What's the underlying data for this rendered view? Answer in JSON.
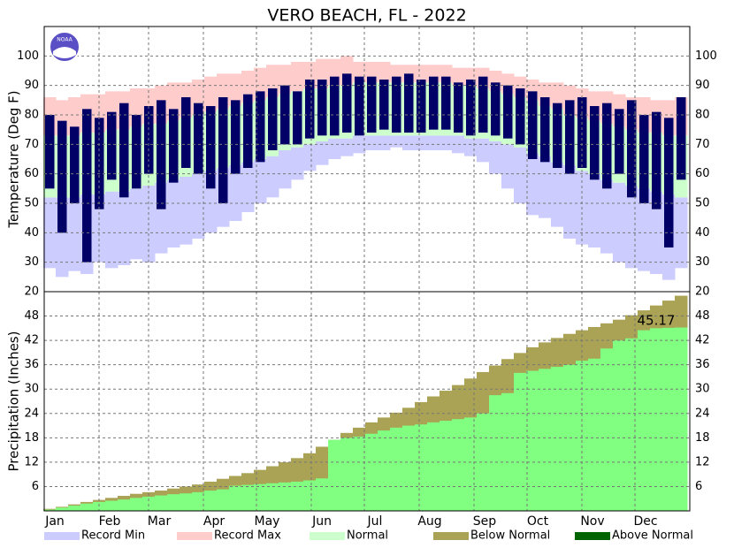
{
  "chart_data": [
    {
      "type": "bar",
      "title": "VERO BEACH, FL - 2022",
      "logo_text": "NOAA",
      "ylabel": "Temperature (Deg F)",
      "x": [
        3,
        10,
        17,
        24,
        31,
        38,
        45,
        52,
        59,
        66,
        73,
        80,
        87,
        94,
        101,
        108,
        115,
        122,
        129,
        136,
        143,
        150,
        157,
        164,
        171,
        178,
        185,
        192,
        199,
        206,
        213,
        220,
        227,
        234,
        241,
        248,
        255,
        262,
        269,
        276,
        283,
        290,
        297,
        304,
        311,
        318,
        325,
        332,
        339,
        346,
        353,
        360
      ],
      "xlim": [
        0,
        365
      ],
      "ylim": [
        20,
        110
      ],
      "yticks": [
        20,
        30,
        40,
        50,
        60,
        70,
        80,
        90,
        100
      ],
      "grid": true,
      "series": [
        {
          "color": "#ccccff",
          "values": [
            28,
            25,
            27,
            26,
            30,
            28,
            29,
            31,
            30,
            33,
            35,
            36,
            38,
            40,
            42,
            44,
            47,
            50,
            52,
            55,
            58,
            61,
            63,
            65,
            66,
            67,
            68,
            68,
            69,
            68,
            68,
            68,
            68,
            67,
            66,
            64,
            60,
            55,
            50,
            46,
            45,
            42,
            38,
            36,
            35,
            33,
            30,
            28,
            27,
            26,
            24,
            28
          ]
        },
        {
          "color": "#ffcccc",
          "values": [
            86,
            85,
            86,
            87,
            87,
            88,
            88,
            89,
            89,
            90,
            91,
            91,
            92,
            93,
            94,
            94,
            95,
            96,
            97,
            97,
            98,
            98,
            99,
            99,
            100,
            98,
            98,
            98,
            97,
            97,
            97,
            97,
            97,
            96,
            96,
            96,
            95,
            94,
            93,
            92,
            91,
            91,
            90,
            89,
            88,
            88,
            87,
            86,
            86,
            85,
            85,
            86
          ]
        },
        {
          "color": "#ccffcc",
          "low": [
            52,
            52,
            52,
            53,
            53,
            54,
            54,
            55,
            56,
            57,
            58,
            59,
            60,
            61,
            62,
            63,
            64,
            65,
            66,
            68,
            69,
            70,
            71,
            72,
            72,
            73,
            73,
            73,
            73,
            73,
            73,
            73,
            73,
            73,
            72,
            72,
            71,
            70,
            69,
            67,
            66,
            64,
            63,
            61,
            60,
            58,
            57,
            56,
            55,
            54,
            53,
            52
          ],
          "values": [
            73,
            73,
            73,
            74,
            74,
            75,
            75,
            76,
            77,
            77,
            78,
            79,
            80,
            81,
            82,
            83,
            84,
            85,
            86,
            87,
            88,
            89,
            89,
            90,
            90,
            91,
            91,
            91,
            91,
            91,
            91,
            91,
            91,
            90,
            90,
            89,
            88,
            87,
            86,
            85,
            83,
            82,
            80,
            79,
            78,
            77,
            76,
            75,
            74,
            74,
            73,
            73
          ]
        },
        {
          "color": "#000066",
          "low": [
            55,
            40,
            50,
            30,
            48,
            58,
            52,
            55,
            60,
            48,
            57,
            62,
            60,
            55,
            50,
            60,
            62,
            64,
            68,
            70,
            70,
            72,
            73,
            73,
            74,
            73,
            74,
            75,
            74,
            74,
            74,
            75,
            75,
            74,
            73,
            74,
            73,
            72,
            70,
            65,
            64,
            62,
            60,
            62,
            58,
            55,
            60,
            52,
            50,
            48,
            35,
            58
          ],
          "values": [
            80,
            78,
            76,
            82,
            79,
            81,
            84,
            80,
            83,
            85,
            82,
            86,
            84,
            83,
            86,
            85,
            87,
            88,
            89,
            90,
            88,
            92,
            92,
            93,
            94,
            93,
            93,
            92,
            93,
            94,
            92,
            93,
            93,
            91,
            92,
            93,
            91,
            90,
            89,
            88,
            86,
            84,
            85,
            86,
            83,
            84,
            82,
            85,
            80,
            81,
            79,
            86
          ]
        }
      ]
    },
    {
      "type": "bar",
      "ylabel": "Precipitation (Inches)",
      "x": [
        3,
        10,
        17,
        24,
        31,
        38,
        45,
        52,
        59,
        66,
        73,
        80,
        87,
        94,
        101,
        108,
        115,
        122,
        129,
        136,
        143,
        150,
        157,
        164,
        171,
        178,
        185,
        192,
        199,
        206,
        213,
        220,
        227,
        234,
        241,
        248,
        255,
        262,
        269,
        276,
        283,
        290,
        297,
        304,
        311,
        318,
        325,
        332,
        339,
        346,
        353,
        360
      ],
      "xlim": [
        0,
        365
      ],
      "ylim": [
        0,
        54
      ],
      "yticks": [
        6,
        12,
        18,
        24,
        30,
        36,
        42,
        48
      ],
      "grid": true,
      "xticks": [
        {
          "value": 0,
          "label": "Jan"
        },
        {
          "value": 31,
          "label": "Feb"
        },
        {
          "value": 59,
          "label": "Mar"
        },
        {
          "value": 90,
          "label": "Apr"
        },
        {
          "value": 120,
          "label": "May"
        },
        {
          "value": 151,
          "label": "Jun"
        },
        {
          "value": 181,
          "label": "Jul"
        },
        {
          "value": 212,
          "label": "Aug"
        },
        {
          "value": 243,
          "label": "Sep"
        },
        {
          "value": 273,
          "label": "Oct"
        },
        {
          "value": 304,
          "label": "Nov"
        },
        {
          "value": 334,
          "label": "Dec"
        }
      ],
      "series": [
        {
          "color": "#aaa355",
          "values": [
            0.5,
            1.0,
            1.6,
            2.2,
            2.7,
            3.2,
            3.7,
            4.2,
            4.6,
            5.0,
            5.5,
            6.0,
            6.5,
            7.2,
            7.9,
            8.6,
            9.3,
            10.1,
            11,
            12,
            13,
            14.2,
            15.8,
            17.5,
            19.2,
            20.5,
            21.8,
            23,
            24.2,
            25.4,
            26.8,
            28.2,
            29.6,
            31,
            32.6,
            34.2,
            35.8,
            37.4,
            38.9,
            40.3,
            41.5,
            42.6,
            43.6,
            44.5,
            45.3,
            46.2,
            47.1,
            48.2,
            49.4,
            50.6,
            51.8,
            53
          ]
        },
        {
          "color": "#80ff80",
          "values": [
            0.3,
            0.8,
            1.3,
            1.8,
            2.2,
            2.5,
            2.8,
            3.2,
            3.5,
            3.8,
            4.1,
            4.3,
            4.6,
            5.0,
            5.3,
            6.2,
            6.4,
            6.6,
            6.8,
            7.0,
            7.2,
            7.5,
            8.0,
            17.5,
            18.0,
            18.3,
            19.0,
            19.8,
            20.5,
            21.0,
            21.3,
            21.8,
            22.2,
            22.6,
            23.0,
            24.0,
            28.5,
            29.0,
            34.0,
            34.5,
            35.0,
            35.5,
            36.0,
            37.0,
            37.5,
            40.0,
            42.0,
            42.5,
            44.5,
            45.0,
            45.1,
            45.17
          ]
        }
      ],
      "legend": [
        {
          "label": "Record Min",
          "color": "#ccccff"
        },
        {
          "label": "Record Max",
          "color": "#ffcccc"
        },
        {
          "label": "Normal",
          "color": "#ccffcc"
        },
        {
          "label": "Below Normal",
          "color": "#aaa355"
        },
        {
          "label": "Above Normal",
          "color": "#006400"
        }
      ]
    }
  ]
}
